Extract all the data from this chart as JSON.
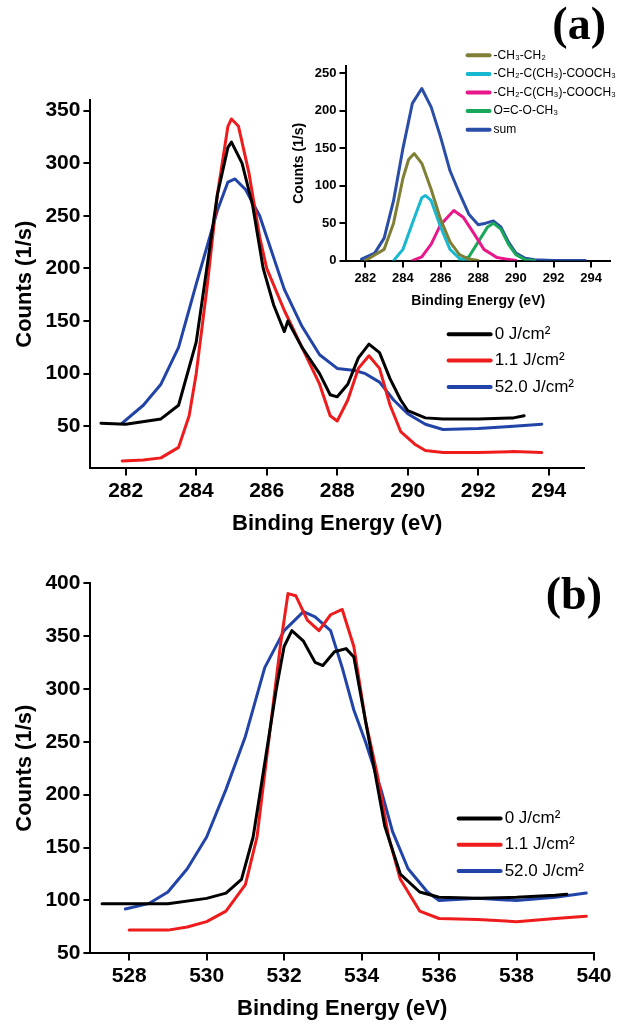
{
  "chart_data": [
    {
      "type": "line",
      "title": "(a)",
      "xlabel": "Binding Energy (eV)",
      "ylabel": "Counts (1/s)",
      "xlim": [
        281,
        295
      ],
      "xticks": [
        282,
        284,
        286,
        288,
        290,
        292,
        294
      ],
      "ylim": [
        10,
        360
      ],
      "yticks": [
        50,
        100,
        150,
        200,
        250,
        300,
        350
      ],
      "legend": "right",
      "series": [
        {
          "name": "0 J/cm²",
          "color": "#000000",
          "x": [
            281.3,
            282,
            283,
            283.5,
            284,
            284.3,
            284.6,
            284.9,
            285,
            285.3,
            285.6,
            285.9,
            286.2,
            286.5,
            286.6,
            287,
            287.5,
            287.8,
            288,
            288.3,
            288.6,
            288.9,
            289.2,
            289.5,
            289.8,
            290,
            290.5,
            291,
            292,
            293,
            293.3
          ],
          "values": [
            53,
            52,
            57,
            70,
            130,
            200,
            270,
            315,
            320,
            300,
            260,
            200,
            165,
            140,
            150,
            125,
            100,
            80,
            78,
            90,
            115,
            128,
            120,
            95,
            75,
            65,
            58,
            57,
            57,
            58,
            60
          ]
        },
        {
          "name": "1.1 J/cm²",
          "color": "#ee1c1c",
          "x": [
            281.9,
            282.5,
            283,
            283.5,
            283.8,
            284,
            284.3,
            284.6,
            284.9,
            285,
            285.2,
            285.5,
            285.8,
            286,
            286.5,
            287,
            287.5,
            287.8,
            288,
            288.3,
            288.6,
            288.9,
            289.2,
            289.5,
            289.8,
            290.2,
            290.5,
            291,
            292,
            293,
            293.8
          ],
          "values": [
            17,
            18,
            20,
            30,
            60,
            100,
            180,
            270,
            335,
            342,
            335,
            290,
            230,
            200,
            160,
            125,
            90,
            60,
            55,
            75,
            105,
            117,
            105,
            70,
            45,
            33,
            27,
            25,
            25,
            26,
            25
          ]
        },
        {
          "name": "52.0 J/cm²",
          "color": "#2244a8",
          "x": [
            281.9,
            282.5,
            283,
            283.5,
            284,
            284.3,
            284.6,
            284.9,
            285.1,
            285.4,
            285.8,
            286.2,
            286.5,
            287,
            287.5,
            288,
            288.5,
            288.8,
            289.2,
            289.6,
            290,
            290.5,
            291,
            292,
            293,
            293.8
          ],
          "values": [
            53,
            70,
            90,
            125,
            185,
            220,
            255,
            282,
            285,
            275,
            250,
            210,
            180,
            145,
            118,
            105,
            103,
            100,
            92,
            75,
            62,
            52,
            47,
            48,
            50,
            52
          ]
        }
      ]
    },
    {
      "type": "line",
      "xlabel": "Binding Energy (eV)",
      "ylabel": "Counts (1/s)",
      "xlim": [
        281,
        295
      ],
      "xticks": [
        282,
        284,
        286,
        288,
        290,
        292,
        294
      ],
      "ylim": [
        0,
        260
      ],
      "yticks": [
        0,
        50,
        100,
        150,
        200,
        250
      ],
      "legend": "top right",
      "series": [
        {
          "name": "-CH₃-CH₂",
          "color": "#7f7f36",
          "x": [
            282,
            283,
            283.5,
            284,
            284.3,
            284.6,
            285,
            285.5,
            286,
            286.5,
            287,
            287.5,
            288
          ],
          "values": [
            0,
            15,
            50,
            110,
            135,
            143,
            130,
            95,
            55,
            25,
            8,
            2,
            0
          ]
        },
        {
          "name": "-CH₂-C(CH₃)-COOCH₃",
          "color": "#17b8d0",
          "x": [
            283.5,
            284,
            284.5,
            285,
            285.2,
            285.5,
            286,
            286.5,
            287,
            287.5
          ],
          "values": [
            0,
            15,
            50,
            84,
            87,
            80,
            45,
            15,
            3,
            0
          ]
        },
        {
          "name": "-CH₂-C(CH₃)-COOCH₃",
          "color": "#e8178a",
          "x": [
            284.5,
            285,
            285.5,
            286,
            286.7,
            287.2,
            287.8,
            288.3,
            289,
            290
          ],
          "values": [
            0,
            5,
            22,
            48,
            67,
            58,
            35,
            15,
            4,
            0
          ]
        },
        {
          "name": "O=C-O-CH₃",
          "color": "#1aa85a",
          "x": [
            287,
            287.5,
            288,
            288.5,
            288.8,
            289.2,
            289.6,
            290,
            290.5,
            291
          ],
          "values": [
            0,
            5,
            25,
            45,
            50,
            42,
            22,
            8,
            1,
            0
          ]
        },
        {
          "name": "sum",
          "color": "#2a4ea8",
          "x": [
            281.8,
            282.5,
            283,
            283.5,
            284,
            284.5,
            285,
            285.5,
            286,
            286.5,
            287,
            287.5,
            288,
            288.4,
            288.8,
            289.2,
            289.6,
            290,
            290.5,
            291,
            292,
            293.7
          ],
          "values": [
            2,
            10,
            30,
            80,
            150,
            210,
            230,
            205,
            165,
            120,
            90,
            62,
            48,
            50,
            53,
            45,
            25,
            10,
            3,
            1,
            0,
            0
          ]
        }
      ]
    },
    {
      "type": "line",
      "title": "(b)",
      "xlabel": "Binding Energy (eV)",
      "ylabel": "Counts (1/s)",
      "xlim": [
        527,
        540
      ],
      "xticks": [
        528,
        530,
        532,
        534,
        536,
        538,
        540
      ],
      "ylim": [
        50,
        400
      ],
      "yticks": [
        50,
        100,
        150,
        200,
        250,
        300,
        350,
        400
      ],
      "legend": "right",
      "series": [
        {
          "name": "0 J/cm²",
          "color": "#000000",
          "x": [
            527.3,
            528,
            529,
            530,
            530.5,
            530.9,
            531.2,
            531.5,
            531.8,
            532,
            532.2,
            532.5,
            532.8,
            533,
            533.3,
            533.6,
            533.8,
            534,
            534.3,
            534.6,
            535,
            535.5,
            536,
            537,
            538,
            539,
            539.3
          ],
          "values": [
            97,
            97,
            97,
            102,
            107,
            120,
            160,
            230,
            300,
            340,
            355,
            345,
            325,
            322,
            335,
            338,
            330,
            290,
            230,
            170,
            125,
            108,
            103,
            102,
            103,
            105,
            106
          ]
        },
        {
          "name": "1.1 J/cm²",
          "color": "#ee1c1c",
          "x": [
            528,
            529,
            529.5,
            530,
            530.5,
            531,
            531.3,
            531.6,
            531.9,
            532.1,
            532.3,
            532.6,
            532.9,
            533.2,
            533.5,
            533.8,
            534.1,
            534.4,
            534.7,
            535,
            535.5,
            536,
            537,
            538,
            539,
            539.8
          ],
          "values": [
            72,
            72,
            75,
            80,
            90,
            115,
            160,
            250,
            340,
            390,
            388,
            365,
            355,
            370,
            375,
            340,
            270,
            220,
            160,
            120,
            90,
            83,
            82,
            80,
            83,
            85
          ]
        },
        {
          "name": "52.0 J/cm²",
          "color": "#2244a8",
          "x": [
            527.9,
            528.5,
            529,
            529.5,
            530,
            530.5,
            531,
            531.5,
            532,
            532.5,
            532.8,
            533.2,
            533.5,
            533.8,
            534.1,
            534.5,
            534.8,
            535.2,
            535.7,
            536,
            537,
            538,
            539,
            539.8
          ],
          "values": [
            92,
            97,
            108,
            130,
            160,
            205,
            255,
            320,
            355,
            373,
            368,
            355,
            320,
            280,
            250,
            205,
            165,
            130,
            108,
            100,
            102,
            100,
            103,
            107
          ]
        }
      ]
    }
  ]
}
